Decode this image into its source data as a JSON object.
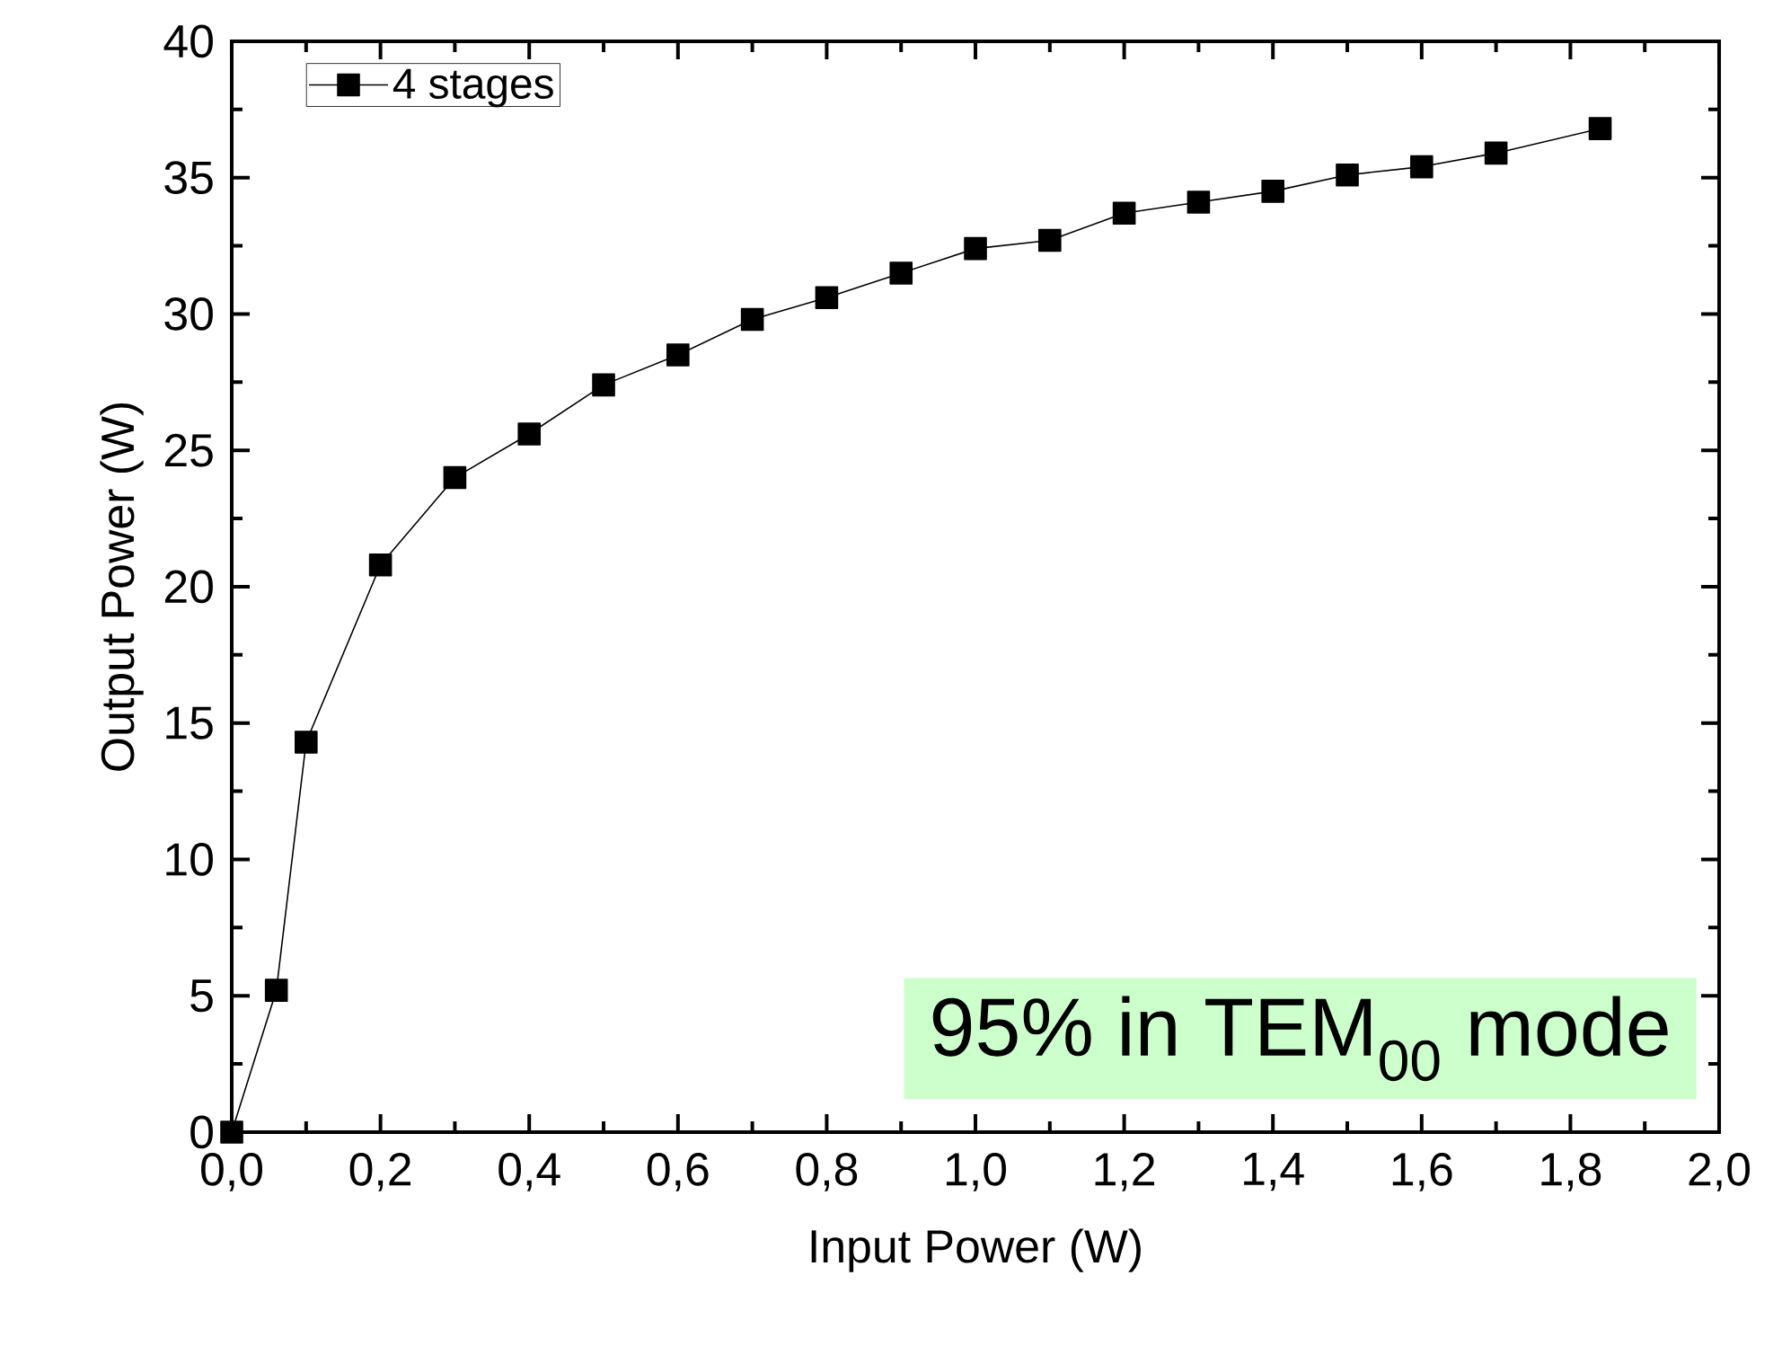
{
  "chart_data": {
    "type": "line",
    "xlabel": "Input Power (W)",
    "ylabel": "Output Power (W)",
    "annotations": [
      "95% in TEM$_{00}$ mode"
    ],
    "x": [
      0,
      0.06,
      0.1,
      0.2,
      0.3,
      0.4,
      0.5,
      0.6,
      0.7,
      0.8,
      0.9,
      1.0,
      1.1,
      1.2,
      1.3,
      1.4,
      1.5,
      1.6,
      1.7,
      1.84
    ],
    "series": [
      {
        "name": "4 stages",
        "color": "#000000",
        "values": [
          0,
          5.2,
          14.3,
          20.8,
          24.0,
          25.6,
          27.4,
          28.5,
          29.8,
          30.6,
          31.5,
          32.4,
          32.7,
          33.7,
          34.1,
          34.5,
          35.1,
          35.4,
          35.9,
          36.8
        ]
      }
    ],
    "xlim": [
      0,
      2.0
    ],
    "ylim": [
      0,
      40
    ],
    "xticks": [
      {
        "value": 0,
        "label": "0,0"
      },
      {
        "value": 0.2,
        "label": "0,2"
      },
      {
        "value": 0.4,
        "label": "0,4"
      },
      {
        "value": 0.6,
        "label": "0,6"
      },
      {
        "value": 0.8,
        "label": "0,8"
      },
      {
        "value": 1.0,
        "label": "1,0"
      },
      {
        "value": 1.2,
        "label": "1,2"
      },
      {
        "value": 1.4,
        "label": "1,4"
      },
      {
        "value": 1.6,
        "label": "1,6"
      },
      {
        "value": 1.8,
        "label": "1,8"
      },
      {
        "value": 2.0,
        "label": "2,0"
      }
    ],
    "yticks": [
      0,
      5,
      10,
      15,
      20,
      25,
      30,
      35,
      40
    ],
    "legend": "top left",
    "marker": "square",
    "line_style": "solid",
    "grid": false
  }
}
